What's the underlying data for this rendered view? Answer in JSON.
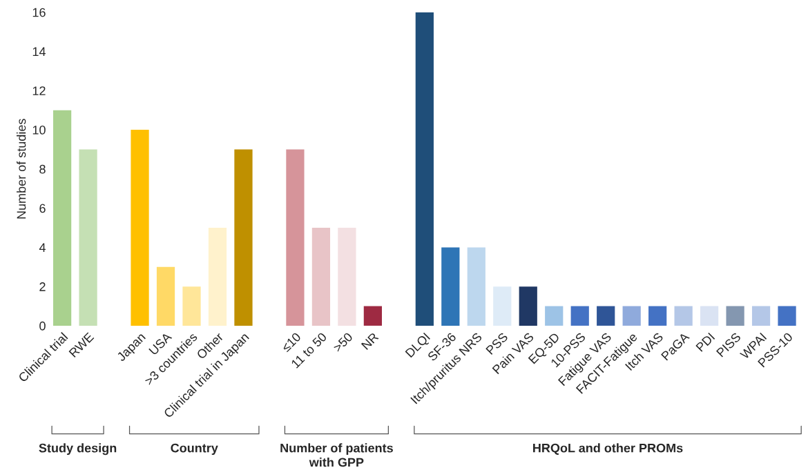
{
  "chart_data": {
    "type": "bar",
    "ylabel": "Number of studies",
    "categories": [
      "Clinical trial",
      "RWE",
      null,
      "Japan",
      "USA",
      ">3 countries",
      "Other",
      "Clinical trial in Japan",
      null,
      "≤10",
      "11 to 50",
      ">50",
      "NR",
      null,
      "DLQI",
      "SF-36",
      "Itch/pruritus NRS",
      "PSS",
      "Pain VAS",
      "EQ-5D",
      "10-PSS",
      "Fatigue VAS",
      "FACIT-Fatigue",
      "Itch VAS",
      "PaGA",
      "PDI",
      "PISS",
      "WPAI",
      "PSS-10"
    ],
    "values": [
      11,
      9,
      null,
      10,
      3,
      2,
      5,
      9,
      null,
      9,
      5,
      5,
      1,
      null,
      16,
      4,
      4,
      2,
      2,
      1,
      1,
      1,
      1,
      1,
      1,
      1,
      1,
      1,
      1
    ],
    "colors": [
      "#a9d18e",
      "#c5e0b4",
      null,
      "#ffc000",
      "#ffd966",
      "#ffe699",
      "#fff2cc",
      "#bf9000",
      null,
      "#d6949a",
      "#e8c4c7",
      "#f3e0e2",
      "#9e2a42",
      null,
      "#1f4e79",
      "#2e75b6",
      "#bdd7ee",
      "#deebf7",
      "#203864",
      "#9dc3e6",
      "#4472c4",
      "#2f5597",
      "#8faadc",
      "#4472c4",
      "#b4c7e7",
      "#dae3f3",
      "#8497b0",
      "#b4c7e7",
      "#4472c4"
    ],
    "ylim": [
      0,
      16
    ],
    "yticks": [
      0,
      2,
      4,
      6,
      8,
      10,
      12,
      14,
      16
    ],
    "grid": false,
    "legend": false,
    "annotations": [
      "Study design",
      "Country",
      "Number of patients\nwith GPP",
      "HRQoL and other PROMs"
    ]
  }
}
